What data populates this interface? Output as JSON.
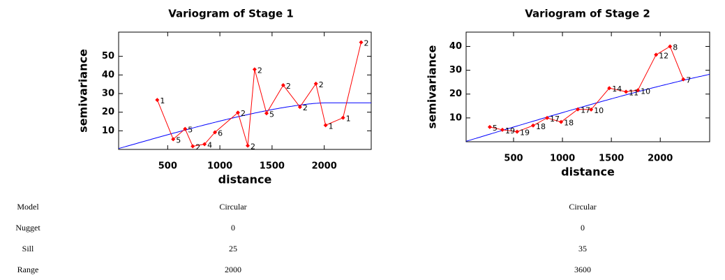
{
  "chart_data": [
    {
      "type": "scatter",
      "title": "Variogram of Stage 1",
      "xlabel": "distance",
      "ylabel": "semivariance",
      "x": [
        400,
        553,
        667,
        740,
        853,
        953,
        1173,
        1267,
        1333,
        1447,
        1607,
        1767,
        1920,
        2013,
        2180,
        2353
      ],
      "values": [
        26.6,
        5.5,
        11,
        1.7,
        2.8,
        9.2,
        19.8,
        2,
        43,
        19.4,
        34.5,
        22.8,
        35.3,
        13,
        17,
        57.5
      ],
      "pairs": [
        1,
        5,
        5,
        2,
        4,
        6,
        2,
        2,
        2,
        5,
        2,
        2,
        2,
        1,
        1,
        2
      ],
      "color": "#ff0000",
      "model_color": "#0000ff",
      "xlim": [
        30,
        2450
      ],
      "ylim": [
        0,
        63
      ],
      "xticks": [
        500,
        1000,
        1500,
        2000
      ],
      "yticks": [
        10,
        20,
        30,
        40,
        50
      ]
    },
    {
      "type": "scatter",
      "title": "Variogram of Stage 2",
      "xlabel": "distance",
      "ylabel": "semivariance",
      "x": [
        257,
        386,
        536,
        700,
        843,
        986,
        1157,
        1293,
        1479,
        1650,
        1771,
        1957,
        2100,
        2236
      ],
      "values": [
        6.2,
        5,
        4.2,
        6.8,
        10,
        8.3,
        13.6,
        13.5,
        22.5,
        21,
        21.6,
        36.5,
        40,
        26.2
      ],
      "pairs": [
        5,
        19,
        19,
        18,
        17,
        18,
        17,
        10,
        14,
        11,
        10,
        12,
        8,
        7
      ],
      "color": "#ff0000",
      "model_color": "#0000ff",
      "xlim": [
        15,
        2505
      ],
      "ylim": [
        0,
        46
      ],
      "xticks": [
        500,
        1000,
        1500,
        2000
      ],
      "yticks": [
        10,
        20,
        30,
        40
      ]
    }
  ],
  "table": {
    "rows": [
      [
        "Model",
        "Circular",
        "Circular"
      ],
      [
        "Nugget",
        "0",
        "0"
      ],
      [
        "Sill",
        "25",
        "35"
      ],
      [
        "Range",
        "2000",
        "3600"
      ]
    ]
  }
}
